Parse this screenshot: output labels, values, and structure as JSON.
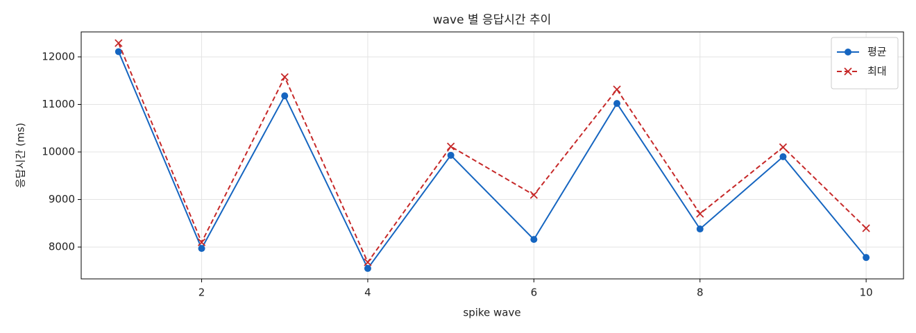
{
  "chart_data": {
    "type": "line",
    "title": "wave 별 응답시간 추이",
    "x_label": "spike wave",
    "y_label": "응답시간 (ms)",
    "x": [
      1,
      2,
      3,
      4,
      5,
      6,
      7,
      8,
      9,
      10
    ],
    "series": [
      {
        "name": "평균",
        "color": "#1565c0",
        "marker": "circle",
        "dash": false,
        "values": [
          12110,
          7970,
          11180,
          7550,
          9930,
          8160,
          11020,
          8380,
          9900,
          7780
        ]
      },
      {
        "name": "최대",
        "color": "#c62828",
        "marker": "x",
        "dash": true,
        "values": [
          12290,
          8100,
          11575,
          7680,
          10115,
          9095,
          11315,
          8700,
          10100,
          8395
        ]
      }
    ],
    "xlim": [
      0.55,
      10.45
    ],
    "xticks": [
      2,
      4,
      6,
      8,
      10
    ],
    "ylim": [
      7330,
      12525
    ],
    "yticks": [
      8000,
      9000,
      10000,
      11000,
      12000
    ],
    "grid": true,
    "legend": "upper right"
  }
}
